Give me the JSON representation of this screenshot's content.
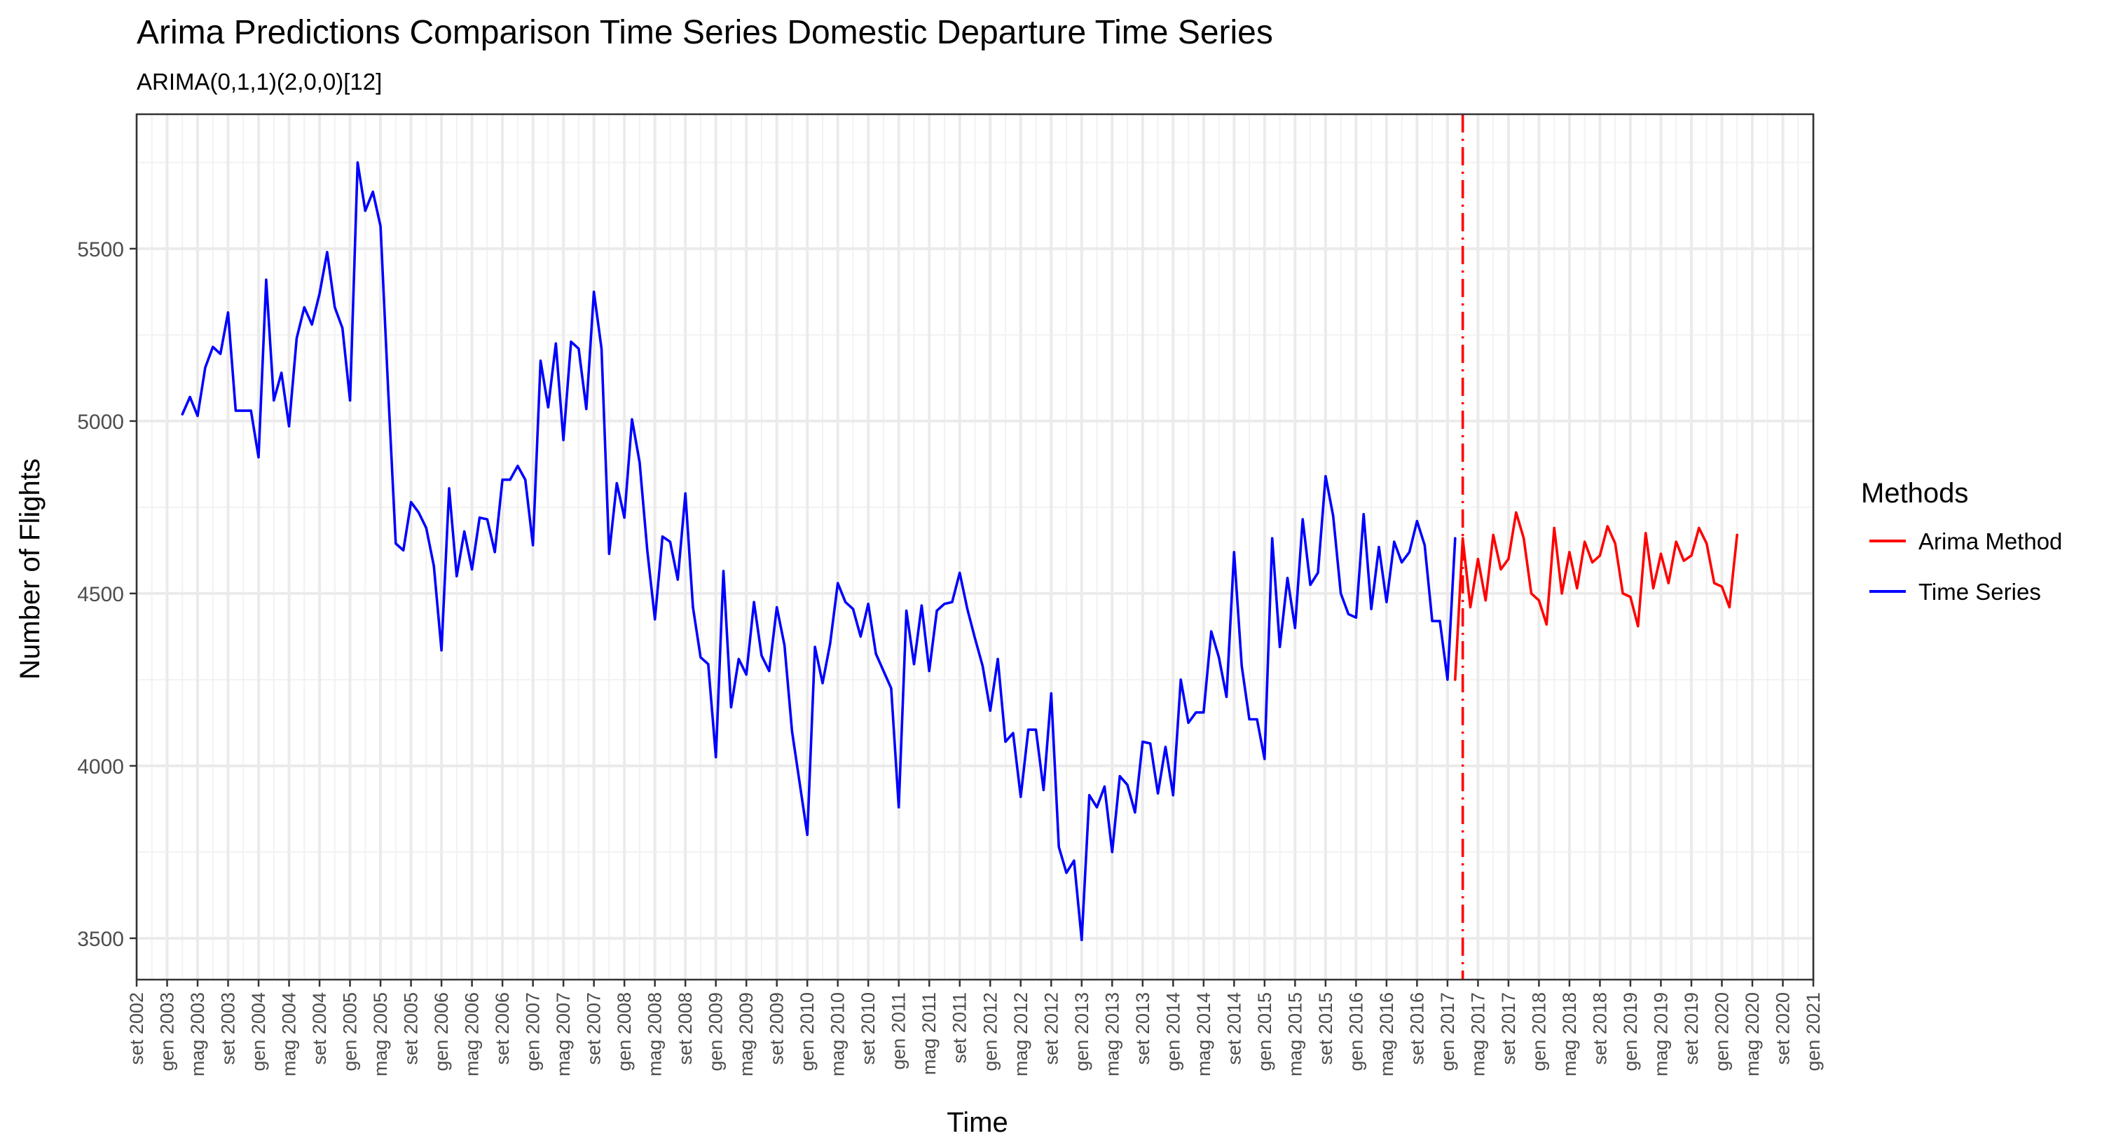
{
  "chart_data": {
    "type": "line",
    "title": "Arima Predictions Comparison Time Series Domestic Departure Time Series",
    "subtitle": "ARIMA(0,1,1)(2,0,0)[12]",
    "xlabel": "Time",
    "ylabel": "Number of Flights",
    "x_range": [
      "2002-09",
      "2021-01"
    ],
    "ylim": [
      3380,
      5890
    ],
    "y_ticks": [
      3500,
      4000,
      4500,
      5000,
      5500
    ],
    "x_tick_labels": [
      "set 2002",
      "gen 2003",
      "mag 2003",
      "set 2003",
      "gen 2004",
      "mag 2004",
      "set 2004",
      "gen 2005",
      "mag 2005",
      "set 2005",
      "gen 2006",
      "mag 2006",
      "set 2006",
      "gen 2007",
      "mag 2007",
      "set 2007",
      "gen 2008",
      "mag 2008",
      "set 2008",
      "gen 2009",
      "mag 2009",
      "set 2009",
      "gen 2010",
      "mag 2010",
      "set 2010",
      "gen 2011",
      "mag 2011",
      "set 2011",
      "gen 2012",
      "mag 2012",
      "set 2012",
      "gen 2013",
      "mag 2013",
      "set 2013",
      "gen 2014",
      "mag 2014",
      "set 2014",
      "gen 2015",
      "mag 2015",
      "set 2015",
      "gen 2016",
      "mag 2016",
      "set 2016",
      "gen 2017",
      "mag 2017",
      "set 2017",
      "gen 2018",
      "mag 2018",
      "set 2018",
      "gen 2019",
      "mag 2019",
      "set 2019",
      "gen 2020",
      "mag 2020",
      "set 2020",
      "gen 2021"
    ],
    "vline": {
      "x": "2017-03",
      "color": "#ff0000",
      "style": "dashdot"
    },
    "grid": true,
    "legend": {
      "title": "Methods",
      "placement": "right"
    },
    "series": [
      {
        "name": "Time Series",
        "color": "#0000ff",
        "start": "2003-03",
        "values": [
          5020,
          5070,
          5015,
          5155,
          5215,
          5195,
          5315,
          5030,
          5030,
          5030,
          4895,
          5410,
          5060,
          5140,
          4985,
          5240,
          5330,
          5280,
          5370,
          5490,
          5330,
          5270,
          5060,
          5750,
          5610,
          5665,
          5565,
          5090,
          4645,
          4625,
          4765,
          4735,
          4690,
          4580,
          4335,
          4805,
          4550,
          4680,
          4570,
          4720,
          4715,
          4620,
          4830,
          4830,
          4870,
          4830,
          4640,
          5175,
          5040,
          5225,
          4945,
          5230,
          5210,
          5035,
          5375,
          5210,
          4615,
          4820,
          4720,
          5005,
          4880,
          4625,
          4425,
          4665,
          4650,
          4540,
          4790,
          4460,
          4315,
          4295,
          4025,
          4565,
          4170,
          4310,
          4265,
          4475,
          4320,
          4275,
          4460,
          4350,
          4100,
          3950,
          3800,
          4345,
          4240,
          4355,
          4530,
          4475,
          4455,
          4375,
          4470,
          4325,
          4275,
          4225,
          3880,
          4450,
          4295,
          4465,
          4275,
          4450,
          4470,
          4475,
          4560,
          4455,
          4370,
          4290,
          4160,
          4310,
          4070,
          4095,
          3910,
          4105,
          4105,
          3930,
          4210,
          3765,
          3690,
          3725,
          3495,
          3915,
          3880,
          3940,
          3750,
          3970,
          3945,
          3865,
          4070,
          4065,
          3920,
          4055,
          3915,
          4250,
          4125,
          4155,
          4155,
          4390,
          4315,
          4200,
          4620,
          4290,
          4135,
          4135,
          4020,
          4660,
          4345,
          4545,
          4400,
          4715,
          4525,
          4560,
          4840,
          4725,
          4500,
          4440,
          4430,
          4730,
          4455,
          4635,
          4475,
          4650,
          4590,
          4620,
          4710,
          4640,
          4420,
          4420,
          4250,
          4660
        ]
      },
      {
        "name": "Arima Method",
        "color": "#ff0000",
        "start": "2017-02",
        "values": [
          4250,
          4660,
          4460,
          4600,
          4480,
          4670,
          4570,
          4600,
          4735,
          4660,
          4500,
          4480,
          4410,
          4690,
          4500,
          4620,
          4515,
          4650,
          4590,
          4610,
          4695,
          4645,
          4500,
          4490,
          4405,
          4675,
          4515,
          4615,
          4530,
          4650,
          4595,
          4610,
          4690,
          4645,
          4530,
          4520,
          4460,
          4670
        ]
      }
    ]
  }
}
